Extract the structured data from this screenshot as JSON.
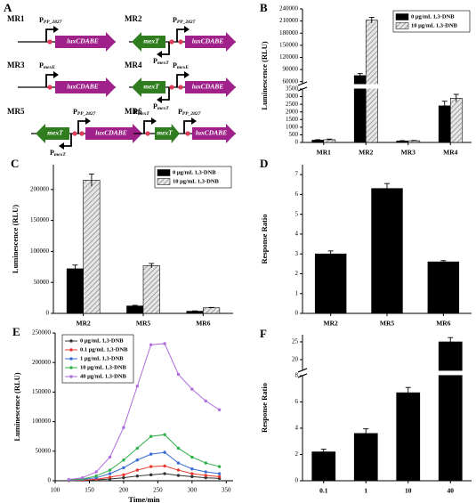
{
  "diagram": {
    "panel_label": "A",
    "constructs": [
      {
        "name": "MR1",
        "promoters": [
          {
            "text": "P",
            "sub": "PP_2827"
          }
        ],
        "genes": [
          "luxCDABE"
        ]
      },
      {
        "name": "MR2",
        "promoters": [
          {
            "text": "P",
            "sub": "PP_2827"
          },
          {
            "text": "P",
            "sub": "mexT"
          }
        ],
        "genes": [
          "mexT",
          "luxCDABE"
        ]
      },
      {
        "name": "MR3",
        "promoters": [
          {
            "text": "P",
            "sub": "mexE"
          }
        ],
        "genes": [
          "luxCDABE"
        ]
      },
      {
        "name": "MR4",
        "promoters": [
          {
            "text": "P",
            "sub": "mexE"
          },
          {
            "text": "P",
            "sub": "mexT"
          }
        ],
        "genes": [
          "mexT",
          "luxCDABE"
        ]
      },
      {
        "name": "MR5",
        "promoters": [
          {
            "text": "P",
            "sub": "PP_2827"
          },
          {
            "text": "P",
            "sub": "mexT"
          }
        ],
        "genes": [
          "mexT",
          "luxCDABE"
        ]
      },
      {
        "name": "MR6",
        "promoters": [
          {
            "text": "P",
            "sub": "mexT"
          },
          {
            "text": "P",
            "sub": "PP_2827"
          }
        ],
        "genes": [
          "mexT",
          "luxCDABE"
        ]
      }
    ]
  },
  "chart_data": [
    {
      "type": "bar",
      "panel_label": "B",
      "y_label": "Luminescence (RLU)",
      "legend": "upper right",
      "categories": [
        "MR1",
        "MR2",
        "MR3",
        "MR4"
      ],
      "series": [
        {
          "name": "0 μg/mL 1,3-DNB",
          "color": "#000000",
          "values": [
            150,
            75000,
            100,
            2400
          ],
          "errors": [
            30,
            5000,
            20,
            300
          ]
        },
        {
          "name": "10 μg/mL 1,3-DNB",
          "color": "#8c8c8c",
          "pattern": "hatch",
          "values": [
            180,
            212000,
            110,
            2900
          ],
          "errors": [
            40,
            7000,
            20,
            250
          ]
        }
      ],
      "y_segments": [
        {
          "ylim": [
            0,
            3500
          ],
          "yticks": [
            0,
            500,
            1000,
            1500,
            2000,
            2500,
            3000,
            3500
          ]
        },
        {
          "ylim": [
            55000,
            240000
          ],
          "yticks": [
            60000,
            90000,
            120000,
            150000,
            180000,
            210000,
            240000
          ]
        }
      ]
    },
    {
      "type": "bar",
      "panel_label": "C",
      "y_label": "Luminescence (RLU)",
      "legend": "upper right",
      "categories": [
        "MR2",
        "MR5",
        "MR6"
      ],
      "series": [
        {
          "name": "0 μg/mL 1,3-DNB",
          "color": "#000000",
          "values": [
            72000,
            12000,
            3500
          ],
          "errors": [
            6000,
            1000,
            500
          ]
        },
        {
          "name": "10 μg/mL 1,3-DNB",
          "color": "#8c8c8c",
          "pattern": "hatch",
          "values": [
            215000,
            77000,
            9000
          ],
          "errors": [
            10000,
            3500,
            600
          ]
        }
      ],
      "ylim": [
        0,
        240000
      ],
      "yticks": [
        0,
        50000,
        100000,
        150000,
        200000
      ]
    },
    {
      "type": "bar",
      "panel_label": "D",
      "y_label": "Response Ratio",
      "categories": [
        "MR2",
        "MR5",
        "MR6"
      ],
      "color": "#000000",
      "values": [
        3.0,
        6.3,
        2.6
      ],
      "errors": [
        0.15,
        0.25,
        0.06
      ],
      "ylim": [
        0,
        7.5
      ],
      "yticks": [
        0,
        1,
        2,
        3,
        4,
        5,
        6,
        7
      ]
    },
    {
      "type": "line",
      "panel_label": "E",
      "x_label": "Time/min",
      "y_label": "Luminescence (RLU)",
      "legend": "upper left",
      "x": [
        120,
        140,
        160,
        180,
        200,
        220,
        240,
        260,
        280,
        300,
        320,
        340
      ],
      "series": [
        {
          "name": "0 μg/mL 1,3-DNB",
          "color": "#333333",
          "values": [
            300,
            800,
            1500,
            3000,
            5000,
            8000,
            10000,
            12000,
            9000,
            7000,
            5000,
            4000
          ]
        },
        {
          "name": "0.1 μg/mL 1,3-DNB",
          "color": "#e8372c",
          "values": [
            500,
            1000,
            2500,
            6000,
            10000,
            18000,
            24000,
            25000,
            18000,
            12000,
            9000,
            7000
          ]
        },
        {
          "name": "1 μg/mL 1,3-DNB",
          "color": "#3a6bd6",
          "values": [
            1000,
            2000,
            5000,
            12000,
            22000,
            35000,
            45000,
            48000,
            30000,
            20000,
            15000,
            12000
          ]
        },
        {
          "name": "10 μg/mL 1,3-DNB",
          "color": "#2fb04a",
          "values": [
            1500,
            3000,
            8000,
            18000,
            35000,
            55000,
            75000,
            78000,
            55000,
            40000,
            30000,
            24000
          ]
        },
        {
          "name": "40 μg/mL 1,3-DNB",
          "color": "#b06bdc",
          "values": [
            2000,
            5000,
            15000,
            40000,
            90000,
            160000,
            230000,
            232000,
            180000,
            155000,
            135000,
            120000
          ]
        }
      ],
      "xlim": [
        100,
        360
      ],
      "xticks": [
        100,
        150,
        200,
        250,
        300,
        350
      ],
      "ylim": [
        0,
        250000
      ],
      "yticks": [
        0,
        50000,
        100000,
        150000,
        200000,
        250000
      ]
    },
    {
      "type": "bar",
      "panel_label": "F",
      "y_label": "Response Ratio",
      "categories": [
        "0.1",
        "1",
        "10",
        "40"
      ],
      "color": "#000000",
      "values": [
        2.2,
        3.6,
        6.7,
        25
      ],
      "errors": [
        0.2,
        0.35,
        0.4,
        1.2
      ],
      "y_segments": [
        {
          "ylim": [
            0,
            8
          ],
          "yticks": [
            0,
            2,
            4,
            6,
            8
          ]
        },
        {
          "ylim": [
            17,
            27
          ],
          "yticks": [
            20,
            25
          ]
        }
      ]
    }
  ]
}
